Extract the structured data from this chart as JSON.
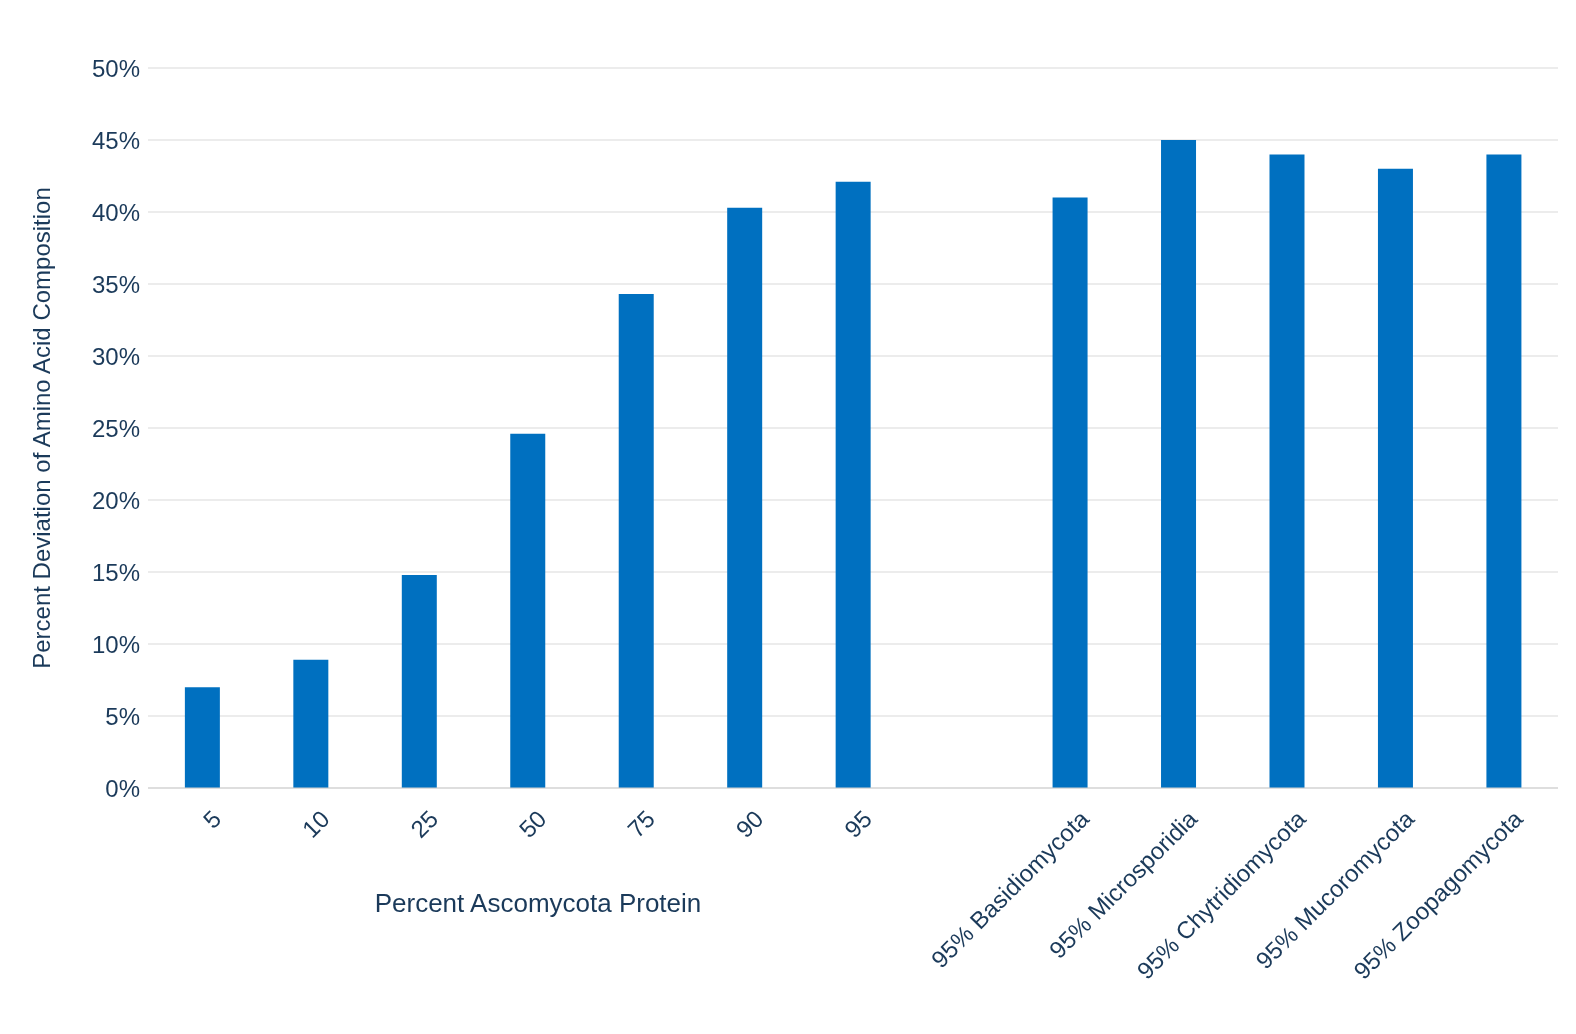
{
  "chart_data": {
    "type": "bar",
    "xlabel": "Percent Ascomycota Protein",
    "ylabel": "Percent Deviation of Amino Acid Composition",
    "categories": [
      "5",
      "10",
      "25",
      "50",
      "75",
      "90",
      "95",
      null,
      "95% Basidiomycota",
      "95% Microsporidia",
      "95% Chytridiomycota",
      "95% Mucoromycota",
      "95% Zoopagomycota"
    ],
    "values": [
      7,
      8.9,
      14.8,
      24.6,
      34.3,
      40.3,
      42.1,
      null,
      41,
      45,
      44,
      43,
      44
    ],
    "color": "#0070c0",
    "ylim": [
      0,
      50
    ],
    "yticks": [
      {
        "value": 0,
        "label": "0%"
      },
      {
        "value": 5,
        "label": "5%"
      },
      {
        "value": 10,
        "label": "10%"
      },
      {
        "value": 15,
        "label": "15%"
      },
      {
        "value": 20,
        "label": "20%"
      },
      {
        "value": 25,
        "label": "25%"
      },
      {
        "value": 30,
        "label": "30%"
      },
      {
        "value": 35,
        "label": "35%"
      },
      {
        "value": 40,
        "label": "40%"
      },
      {
        "value": 45,
        "label": "45%"
      },
      {
        "value": 50,
        "label": "50%"
      }
    ],
    "grid": "y",
    "legend": false
  }
}
